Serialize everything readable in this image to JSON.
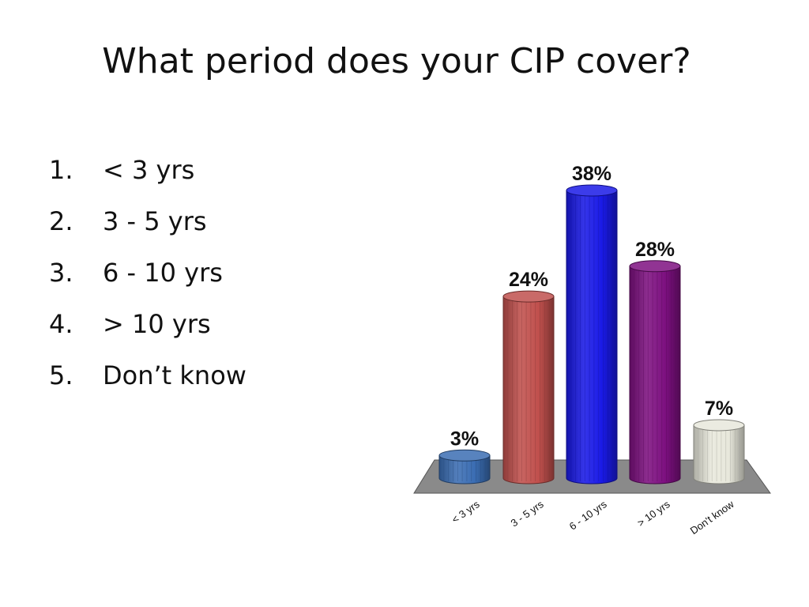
{
  "slide": {
    "title": "What period does your CIP cover?",
    "options": [
      {
        "number": "1.",
        "label": "< 3 yrs"
      },
      {
        "number": "2.",
        "label": "3 - 5 yrs"
      },
      {
        "number": "3.",
        "label": "6 - 10 yrs"
      },
      {
        "number": "4.",
        "label": "> 10 yrs"
      },
      {
        "number": "5.",
        "label": "Don’t know"
      }
    ]
  },
  "chart_data": {
    "type": "bar",
    "categories": [
      "< 3 yrs",
      "3 - 5 yrs",
      "6 - 10 yrs",
      "> 10 yrs",
      "Don't know"
    ],
    "values": [
      3,
      24,
      38,
      28,
      7
    ],
    "value_labels": [
      "3%",
      "24%",
      "38%",
      "28%",
      "7%"
    ],
    "colors": [
      "#3b6db3",
      "#c0504d",
      "#1a1ae6",
      "#7d1080",
      "#e8e8dc"
    ],
    "floor_color": "#8a8a8a",
    "ylim": [
      0,
      38
    ],
    "grid": false,
    "legend": "none"
  }
}
